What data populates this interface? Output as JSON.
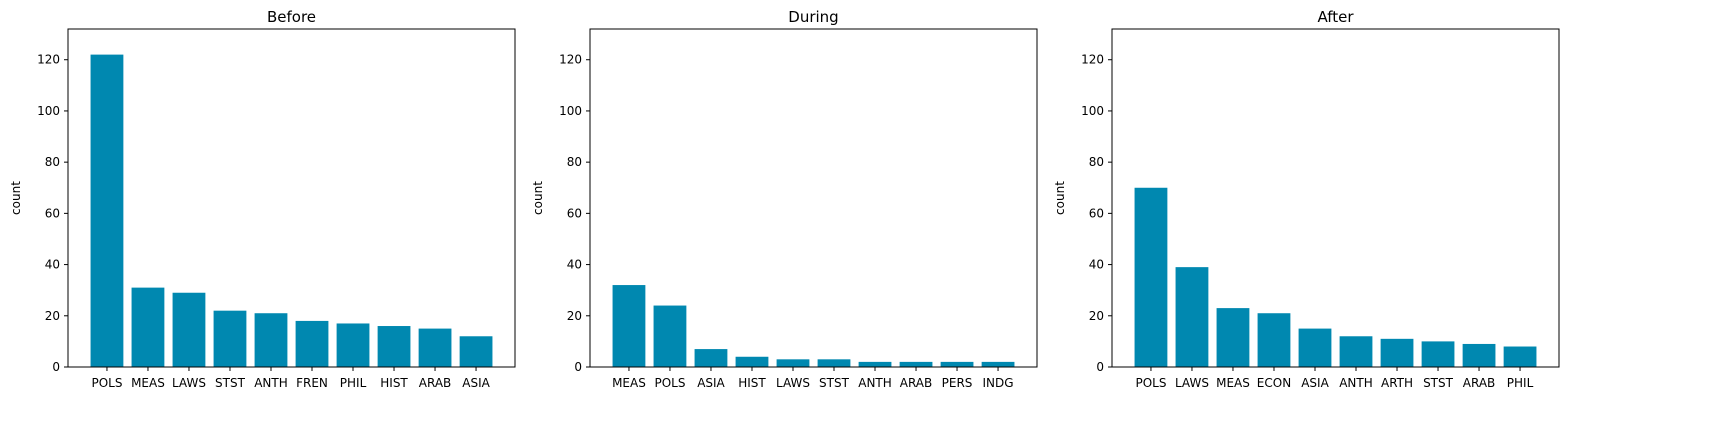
{
  "bar_color": "#0088b0",
  "chart_data": [
    {
      "type": "bar",
      "title": "Before",
      "xlabel": "",
      "ylabel": "count",
      "ylim": [
        0,
        132
      ],
      "yticks": [
        0,
        20,
        40,
        60,
        80,
        100,
        120
      ],
      "categories": [
        "POLS",
        "MEAS",
        "LAWS",
        "STST",
        "ANTH",
        "FREN",
        "PHIL",
        "HIST",
        "ARAB",
        "ASIA"
      ],
      "values": [
        122,
        31,
        29,
        22,
        21,
        18,
        17,
        16,
        15,
        12
      ]
    },
    {
      "type": "bar",
      "title": "During",
      "xlabel": "",
      "ylabel": "count",
      "ylim": [
        0,
        132
      ],
      "yticks": [
        0,
        20,
        40,
        60,
        80,
        100,
        120
      ],
      "categories": [
        "MEAS",
        "POLS",
        "ASIA",
        "HIST",
        "LAWS",
        "STST",
        "ANTH",
        "ARAB",
        "PERS",
        "INDG"
      ],
      "values": [
        32,
        24,
        7,
        4,
        3,
        3,
        2,
        2,
        2,
        2
      ]
    },
    {
      "type": "bar",
      "title": "After",
      "xlabel": "",
      "ylabel": "count",
      "ylim": [
        0,
        132
      ],
      "yticks": [
        0,
        20,
        40,
        60,
        80,
        100,
        120
      ],
      "categories": [
        "POLS",
        "LAWS",
        "MEAS",
        "ECON",
        "ASIA",
        "ANTH",
        "ARTH",
        "STST",
        "ARAB",
        "PHIL"
      ],
      "values": [
        70,
        39,
        23,
        21,
        15,
        12,
        11,
        10,
        9,
        8
      ]
    }
  ]
}
